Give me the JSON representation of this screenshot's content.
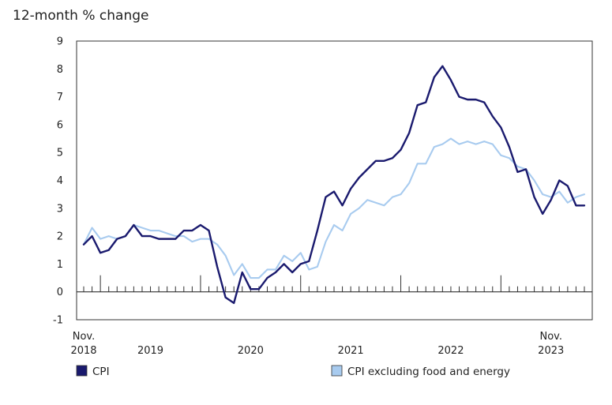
{
  "chart_data": {
    "type": "line",
    "title": "12-month % change",
    "xlabel": "",
    "ylabel": "",
    "ylim": [
      -1,
      9
    ],
    "y_ticks": [
      -1,
      0,
      1,
      2,
      3,
      4,
      5,
      6,
      7,
      8,
      9
    ],
    "x_start": "Nov. 2018",
    "x_end": "Nov. 2023",
    "x_tick_labels": [
      {
        "label": "Nov.",
        "sublabel": "2018"
      },
      {
        "label": "",
        "sublabel": "2019"
      },
      {
        "label": "",
        "sublabel": "2020"
      },
      {
        "label": "",
        "sublabel": "2021"
      },
      {
        "label": "",
        "sublabel": "2022"
      },
      {
        "label": "Nov.",
        "sublabel": "2023"
      }
    ],
    "x": [
      "2018-11",
      "2018-12",
      "2019-01",
      "2019-02",
      "2019-03",
      "2019-04",
      "2019-05",
      "2019-06",
      "2019-07",
      "2019-08",
      "2019-09",
      "2019-10",
      "2019-11",
      "2019-12",
      "2020-01",
      "2020-02",
      "2020-03",
      "2020-04",
      "2020-05",
      "2020-06",
      "2020-07",
      "2020-08",
      "2020-09",
      "2020-10",
      "2020-11",
      "2020-12",
      "2021-01",
      "2021-02",
      "2021-03",
      "2021-04",
      "2021-05",
      "2021-06",
      "2021-07",
      "2021-08",
      "2021-09",
      "2021-10",
      "2021-11",
      "2021-12",
      "2022-01",
      "2022-02",
      "2022-03",
      "2022-04",
      "2022-05",
      "2022-06",
      "2022-07",
      "2022-08",
      "2022-09",
      "2022-10",
      "2022-11",
      "2022-12",
      "2023-01",
      "2023-02",
      "2023-03",
      "2023-04",
      "2023-05",
      "2023-06",
      "2023-07",
      "2023-08",
      "2023-09",
      "2023-10",
      "2023-11"
    ],
    "series": [
      {
        "name": "CPI",
        "color": "#1a1a6e",
        "values": [
          1.7,
          2.0,
          1.4,
          1.5,
          1.9,
          2.0,
          2.4,
          2.0,
          2.0,
          1.9,
          1.9,
          1.9,
          2.2,
          2.2,
          2.4,
          2.2,
          0.9,
          -0.2,
          -0.4,
          0.7,
          0.1,
          0.1,
          0.5,
          0.7,
          1.0,
          0.7,
          1.0,
          1.1,
          2.2,
          3.4,
          3.6,
          3.1,
          3.7,
          4.1,
          4.4,
          4.7,
          4.7,
          4.8,
          5.1,
          5.7,
          6.7,
          6.8,
          7.7,
          8.1,
          7.6,
          7.0,
          6.9,
          6.9,
          6.8,
          6.3,
          5.9,
          5.2,
          4.3,
          4.4,
          3.4,
          2.8,
          3.3,
          4.0,
          3.8,
          3.1,
          3.1
        ]
      },
      {
        "name": "CPI excluding food and energy",
        "color": "#a8cbef",
        "values": [
          1.7,
          2.3,
          1.9,
          2.0,
          1.9,
          2.0,
          2.4,
          2.3,
          2.2,
          2.2,
          2.1,
          2.0,
          2.0,
          1.8,
          1.9,
          1.9,
          1.7,
          1.3,
          0.6,
          1.0,
          0.5,
          0.5,
          0.8,
          0.8,
          1.3,
          1.1,
          1.4,
          0.8,
          0.9,
          1.8,
          2.4,
          2.2,
          2.8,
          3.0,
          3.3,
          3.2,
          3.1,
          3.4,
          3.5,
          3.9,
          4.6,
          4.6,
          5.2,
          5.3,
          5.5,
          5.3,
          5.4,
          5.3,
          5.4,
          5.3,
          4.9,
          4.8,
          4.5,
          4.4,
          4.0,
          3.5,
          3.4,
          3.6,
          3.2,
          3.4,
          3.5
        ]
      }
    ],
    "grid": false,
    "legend_position": "bottom"
  }
}
